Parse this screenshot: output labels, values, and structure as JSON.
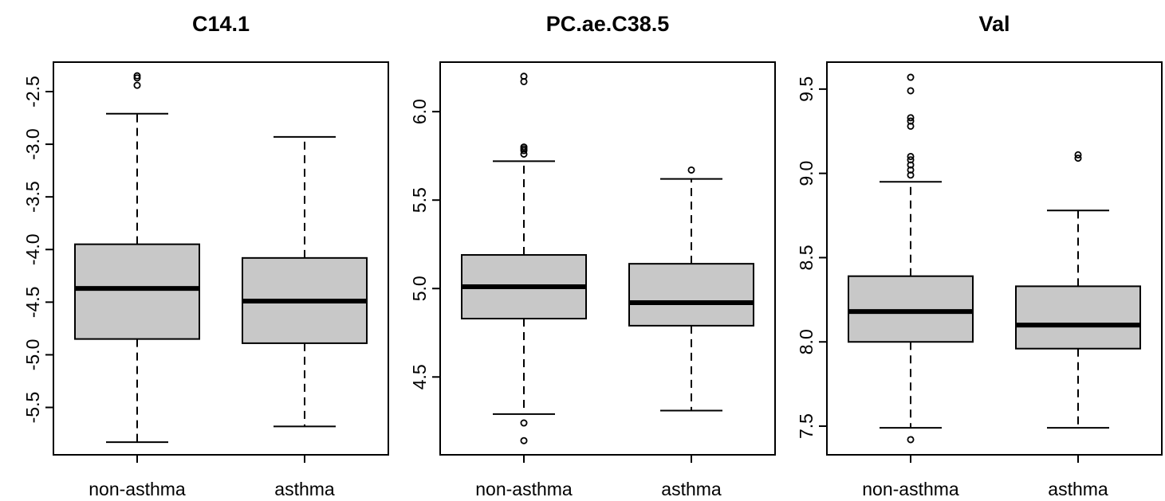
{
  "chart_data": [
    {
      "type": "boxplot",
      "title": "C14.1",
      "xlabel": "",
      "ylabel": "",
      "ylim": [
        -5.95,
        -2.22
      ],
      "yticks": [
        -5.5,
        -5.0,
        -4.5,
        -4.0,
        -3.5,
        -3.0,
        -2.5
      ],
      "ytick_labels": [
        "-5.5",
        "-5.0",
        "-4.5",
        "-4.0",
        "-3.5",
        "-3.0",
        "-2.5"
      ],
      "categories": [
        "non-asthma",
        "asthma"
      ],
      "boxes": [
        {
          "category": "non-asthma",
          "whisker_low": -5.83,
          "q1": -4.85,
          "median": -4.37,
          "q3": -3.95,
          "whisker_high": -2.71,
          "outliers": [
            -2.35,
            -2.37,
            -2.44
          ]
        },
        {
          "category": "asthma",
          "whisker_low": -5.68,
          "q1": -4.89,
          "median": -4.49,
          "q3": -4.08,
          "whisker_high": -2.93,
          "outliers": []
        }
      ]
    },
    {
      "type": "boxplot",
      "title": "PC.ae.C38.5",
      "xlabel": "",
      "ylabel": "",
      "ylim": [
        4.06,
        6.28
      ],
      "yticks": [
        4.5,
        5.0,
        5.5,
        6.0
      ],
      "ytick_labels": [
        "4.5",
        "5.0",
        "5.5",
        "6.0"
      ],
      "categories": [
        "non-asthma",
        "asthma"
      ],
      "boxes": [
        {
          "category": "non-asthma",
          "whisker_low": 4.29,
          "q1": 4.83,
          "median": 5.01,
          "q3": 5.19,
          "whisker_high": 5.72,
          "outliers": [
            4.14,
            4.24,
            5.76,
            5.78,
            5.79,
            5.8,
            6.17,
            6.2
          ]
        },
        {
          "category": "asthma",
          "whisker_low": 4.31,
          "q1": 4.79,
          "median": 4.92,
          "q3": 5.14,
          "whisker_high": 5.62,
          "outliers": [
            5.67
          ]
        }
      ]
    },
    {
      "type": "boxplot",
      "title": "Val",
      "xlabel": "",
      "ylabel": "",
      "ylim": [
        7.33,
        9.66
      ],
      "yticks": [
        7.5,
        8.0,
        8.5,
        9.0,
        9.5
      ],
      "ytick_labels": [
        "7.5",
        "8.0",
        "8.5",
        "9.0",
        "9.5"
      ],
      "categories": [
        "non-asthma",
        "asthma"
      ],
      "boxes": [
        {
          "category": "non-asthma",
          "whisker_low": 7.49,
          "q1": 8.0,
          "median": 8.18,
          "q3": 8.39,
          "whisker_high": 8.95,
          "outliers": [
            7.42,
            8.99,
            9.02,
            9.05,
            9.08,
            9.1,
            9.28,
            9.31,
            9.33,
            9.49,
            9.57
          ]
        },
        {
          "category": "asthma",
          "whisker_low": 7.49,
          "q1": 7.96,
          "median": 8.1,
          "q3": 8.33,
          "whisker_high": 8.78,
          "outliers": [
            9.09,
            9.11
          ]
        }
      ]
    }
  ]
}
